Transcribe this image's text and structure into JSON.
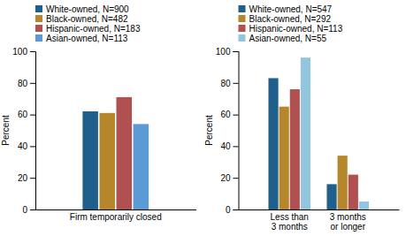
{
  "chart_data": [
    {
      "type": "bar",
      "ylabel": "Percent",
      "categories": [
        "Firm temporarily closed"
      ],
      "series": [
        {
          "name": "White-owned, N=900",
          "color": "#1f5f8b",
          "values": [
            62
          ]
        },
        {
          "name": "Black-owned, N=482",
          "color": "#b5862a",
          "values": [
            61
          ]
        },
        {
          "name": "Hispanic-owned, N=183",
          "color": "#b05050",
          "values": [
            71
          ]
        },
        {
          "name": "Asian-owned, N=113",
          "color": "#5b9bd5",
          "values": [
            54
          ]
        }
      ],
      "ylim": [
        0,
        100
      ],
      "yticks": [
        0,
        20,
        40,
        60,
        80,
        100
      ],
      "grid": false
    },
    {
      "type": "bar",
      "ylabel": "Percent",
      "categories": [
        "Less than\n3 months",
        "3 months\nor longer"
      ],
      "series": [
        {
          "name": "White-owned, N=547",
          "color": "#1f5f8b",
          "values": [
            83,
            16
          ]
        },
        {
          "name": "Black-owned, N=292",
          "color": "#b5862a",
          "values": [
            65,
            34
          ]
        },
        {
          "name": "Hispanic-owned, N=113",
          "color": "#b05050",
          "values": [
            76,
            22
          ]
        },
        {
          "name": "Asian-owned, N=55",
          "color": "#92c5de",
          "values": [
            96,
            5
          ]
        }
      ],
      "ylim": [
        0,
        100
      ],
      "yticks": [
        0,
        20,
        40,
        60,
        80,
        100
      ],
      "grid": false
    }
  ]
}
